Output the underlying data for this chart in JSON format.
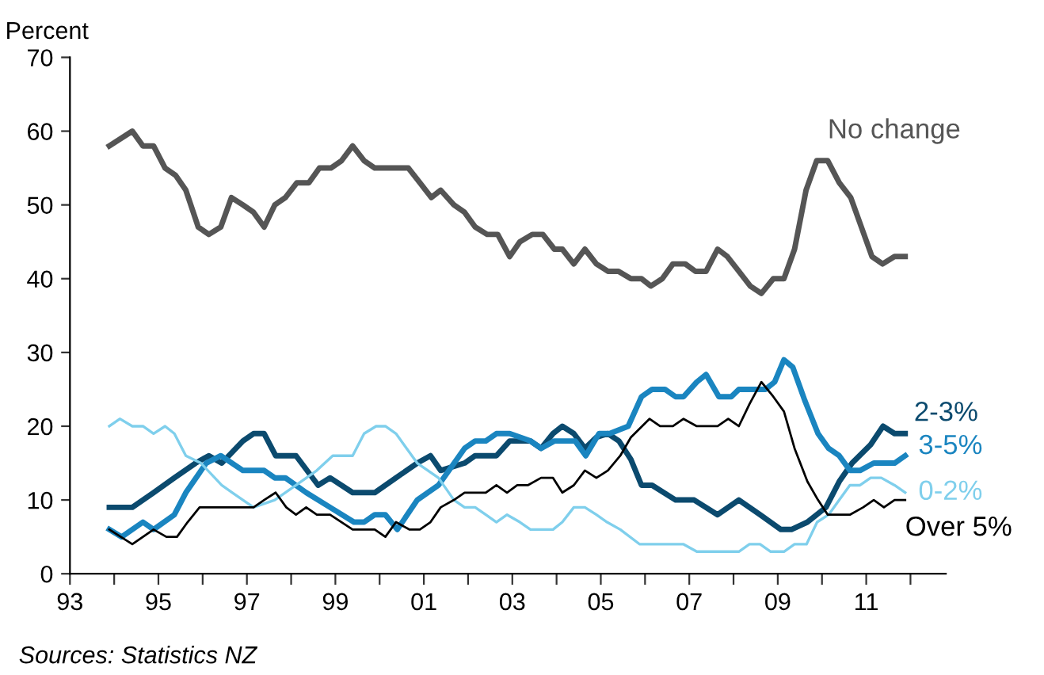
{
  "chart_data": {
    "type": "line",
    "ylabel": "Percent",
    "xlim": [
      1993,
      2012.8
    ],
    "ylim": [
      0,
      70
    ],
    "yticks": [
      0,
      10,
      20,
      30,
      40,
      50,
      60,
      70
    ],
    "xticks": [
      {
        "value": 1993,
        "label": "93"
      },
      {
        "value": 1994,
        "label": null
      },
      {
        "value": 1995,
        "label": "95"
      },
      {
        "value": 1996,
        "label": null
      },
      {
        "value": 1997,
        "label": "97"
      },
      {
        "value": 1998,
        "label": null
      },
      {
        "value": 1999,
        "label": "99"
      },
      {
        "value": 2000,
        "label": null
      },
      {
        "value": 2001,
        "label": "01"
      },
      {
        "value": 2002,
        "label": null
      },
      {
        "value": 2003,
        "label": "03"
      },
      {
        "value": 2004,
        "label": null
      },
      {
        "value": 2005,
        "label": "05"
      },
      {
        "value": 2006,
        "label": null
      },
      {
        "value": 2007,
        "label": "07"
      },
      {
        "value": 2008,
        "label": null
      },
      {
        "value": 2009,
        "label": "09"
      },
      {
        "value": 2010,
        "label": null
      },
      {
        "value": 2011,
        "label": "11"
      },
      {
        "value": 2012,
        "label": null
      }
    ],
    "grid": false,
    "legend": false,
    "marker": "none",
    "line_style": "solid",
    "annotations": [
      "Sources: Statistics NZ"
    ],
    "series": [
      {
        "name": "No change",
        "color": "#555555",
        "x": [
          1993.89,
          1994.41,
          1994.65,
          1994.89,
          1995.15,
          1995.39,
          1995.62,
          1995.9,
          1996.14,
          1996.41,
          1996.65,
          1996.91,
          1997.15,
          1997.39,
          1997.63,
          1997.87,
          1998.13,
          1998.4,
          1998.64,
          1998.9,
          1999.14,
          1999.39,
          1999.65,
          1999.89,
          2000.65,
          2000.91,
          2001.17,
          2001.38,
          2001.68,
          2001.92,
          2002.16,
          2002.43,
          2002.67,
          2002.94,
          2003.17,
          2003.45,
          2003.69,
          2003.95,
          2004.13,
          2004.39,
          2004.64,
          2004.9,
          2005.16,
          2005.4,
          2005.68,
          2005.92,
          2006.13,
          2006.39,
          2006.63,
          2006.91,
          2007.14,
          2007.38,
          2007.64,
          2007.86,
          2008.12,
          2008.38,
          2008.63,
          2008.9,
          2009.14,
          2009.38,
          2009.64,
          2009.88,
          2010.13,
          2010.39,
          2010.65,
          2010.89,
          2011.13,
          2011.37,
          2011.64,
          2011.88
        ],
        "values": [
          58,
          60,
          58,
          58,
          55,
          54,
          52,
          47,
          46,
          47,
          51,
          50,
          49,
          47,
          50,
          51,
          53,
          53,
          55,
          55,
          56,
          58,
          56,
          55,
          55,
          53,
          51,
          52,
          50,
          49,
          47,
          46,
          46,
          43,
          45,
          46,
          46,
          44,
          44,
          42,
          44,
          42,
          41,
          41,
          40,
          40,
          39,
          40,
          42,
          42,
          41,
          41,
          44,
          43,
          41,
          39,
          38,
          40,
          40,
          44,
          52,
          56,
          56,
          53,
          51,
          47,
          43,
          42,
          43,
          43
        ]
      },
      {
        "name": "2-3%",
        "color": "#0b4a6e",
        "x": [
          1993.89,
          1994.41,
          1994.89,
          1995.36,
          1995.84,
          1996.14,
          1996.43,
          1996.91,
          1997.15,
          1997.39,
          1997.65,
          1998.11,
          1998.61,
          1998.88,
          1999.39,
          1999.89,
          2000.37,
          2000.85,
          2001.15,
          2001.38,
          2001.92,
          2002.16,
          2002.64,
          2002.94,
          2003.41,
          2003.65,
          2003.92,
          2004.13,
          2004.39,
          2004.64,
          2004.9,
          2005.16,
          2005.41,
          2005.68,
          2005.92,
          2006.16,
          2006.69,
          2007.11,
          2007.64,
          2008.12,
          2008.6,
          2009.07,
          2009.31,
          2009.67,
          2010.09,
          2010.39,
          2010.68,
          2011.1,
          2011.38,
          2011.64,
          2011.88
        ],
        "values": [
          9,
          9,
          11,
          13,
          15,
          16,
          15,
          18,
          19,
          19,
          16,
          16,
          12,
          13,
          11,
          11,
          13,
          15,
          16,
          14,
          15,
          16,
          16,
          18,
          18,
          17,
          19,
          20,
          19,
          17,
          18.5,
          19,
          18,
          15.5,
          12,
          12,
          10,
          10,
          8,
          10,
          8,
          6,
          6,
          7,
          9,
          12.5,
          15,
          17.5,
          20,
          19,
          19
        ]
      },
      {
        "name": "3-5%",
        "color": "#1a85c0",
        "x": [
          1993.89,
          1994.17,
          1994.65,
          1994.89,
          1995.36,
          1995.62,
          1996.08,
          1996.41,
          1996.91,
          1997.39,
          1997.63,
          1997.87,
          1998.34,
          1998.88,
          1999.42,
          1999.65,
          1999.89,
          2000.13,
          2000.4,
          2000.85,
          2001.33,
          2001.92,
          2002.16,
          2002.4,
          2002.64,
          2002.94,
          2003.41,
          2003.65,
          2003.95,
          2004.42,
          2004.66,
          2004.96,
          2005.2,
          2005.62,
          2005.92,
          2006.16,
          2006.45,
          2006.69,
          2006.87,
          2007.17,
          2007.38,
          2007.67,
          2007.95,
          2008.12,
          2008.72,
          2008.93,
          2009.14,
          2009.34,
          2009.61,
          2009.91,
          2010.15,
          2010.39,
          2010.63,
          2010.86,
          2011.17,
          2011.64,
          2011.88
        ],
        "values": [
          6,
          5,
          7,
          6,
          8,
          11,
          15,
          16,
          14,
          14,
          13,
          13,
          11,
          9,
          7,
          7,
          8,
          8,
          6,
          10,
          12,
          17,
          18,
          18,
          19,
          19,
          18,
          17,
          18,
          18,
          16,
          19,
          19,
          20,
          24,
          25,
          25,
          24,
          24,
          26,
          27,
          24,
          24,
          25,
          25,
          26,
          29,
          28,
          23.5,
          19,
          17,
          16,
          14,
          14,
          15,
          15,
          16
        ]
      },
      {
        "name": "0-2%",
        "color": "#7fcfec",
        "x": [
          1993.89,
          1994.13,
          1994.41,
          1994.65,
          1994.89,
          1995.15,
          1995.36,
          1995.62,
          1995.96,
          1996.43,
          1996.67,
          1997.15,
          1997.63,
          1998.11,
          1998.58,
          1998.94,
          1999.39,
          1999.65,
          1999.92,
          2000.13,
          2000.37,
          2000.85,
          2001.33,
          2001.68,
          2001.92,
          2002.16,
          2002.4,
          2002.64,
          2002.88,
          2003.17,
          2003.41,
          2003.92,
          2004.13,
          2004.39,
          2004.64,
          2004.9,
          2005.14,
          2005.44,
          2005.88,
          2006.87,
          2007.17,
          2008.12,
          2008.36,
          2008.6,
          2008.84,
          2009.14,
          2009.38,
          2009.65,
          2009.89,
          2010.15,
          2010.39,
          2010.63,
          2010.86,
          2011.1,
          2011.34,
          2011.64,
          2011.88
        ],
        "values": [
          20,
          21,
          20,
          20,
          19,
          20,
          19,
          16,
          15,
          12,
          11,
          9,
          10,
          12,
          14,
          16,
          16,
          19,
          20,
          20,
          19,
          15,
          13,
          10,
          9,
          9,
          8,
          7,
          8,
          7,
          6,
          6,
          7,
          9,
          9,
          8,
          7,
          6,
          4,
          4,
          3,
          3,
          4,
          4,
          3,
          3,
          4,
          4,
          7,
          8,
          10,
          12,
          12,
          13,
          13,
          12,
          11
        ]
      },
      {
        "name": "Over 5%",
        "color": "#000000",
        "x": [
          1993.89,
          1994.41,
          1994.89,
          1995.18,
          1995.42,
          1995.66,
          1995.93,
          1997.15,
          1997.39,
          1997.65,
          1997.89,
          1998.11,
          1998.34,
          1998.58,
          1998.88,
          1999.39,
          1999.89,
          2000.13,
          2000.37,
          2000.67,
          2000.91,
          2001.15,
          2001.38,
          2001.68,
          2001.92,
          2002.4,
          2002.64,
          2002.88,
          2003.11,
          2003.35,
          2003.65,
          2003.92,
          2004.13,
          2004.39,
          2004.64,
          2004.9,
          2005.16,
          2005.44,
          2005.68,
          2006.1,
          2006.34,
          2006.63,
          2006.87,
          2007.17,
          2007.64,
          2007.88,
          2008.12,
          2008.36,
          2008.63,
          2008.9,
          2009.14,
          2009.38,
          2009.67,
          2009.91,
          2010.13,
          2010.63,
          2010.93,
          2011.17,
          2011.4,
          2011.64,
          2011.88
        ],
        "values": [
          6,
          4,
          6,
          5,
          5,
          7,
          9,
          9,
          10,
          11,
          9,
          8,
          9,
          8,
          8,
          6,
          6,
          5,
          7,
          6,
          6,
          7,
          9,
          10,
          11,
          11,
          12,
          11,
          12,
          12,
          13,
          13,
          11,
          12,
          14,
          13,
          14,
          16,
          18.5,
          21,
          20,
          20,
          21,
          20,
          20,
          21,
          20,
          23,
          26,
          24,
          22,
          17,
          12.5,
          10,
          8,
          8,
          9,
          10,
          9,
          10,
          10
        ]
      }
    ]
  }
}
